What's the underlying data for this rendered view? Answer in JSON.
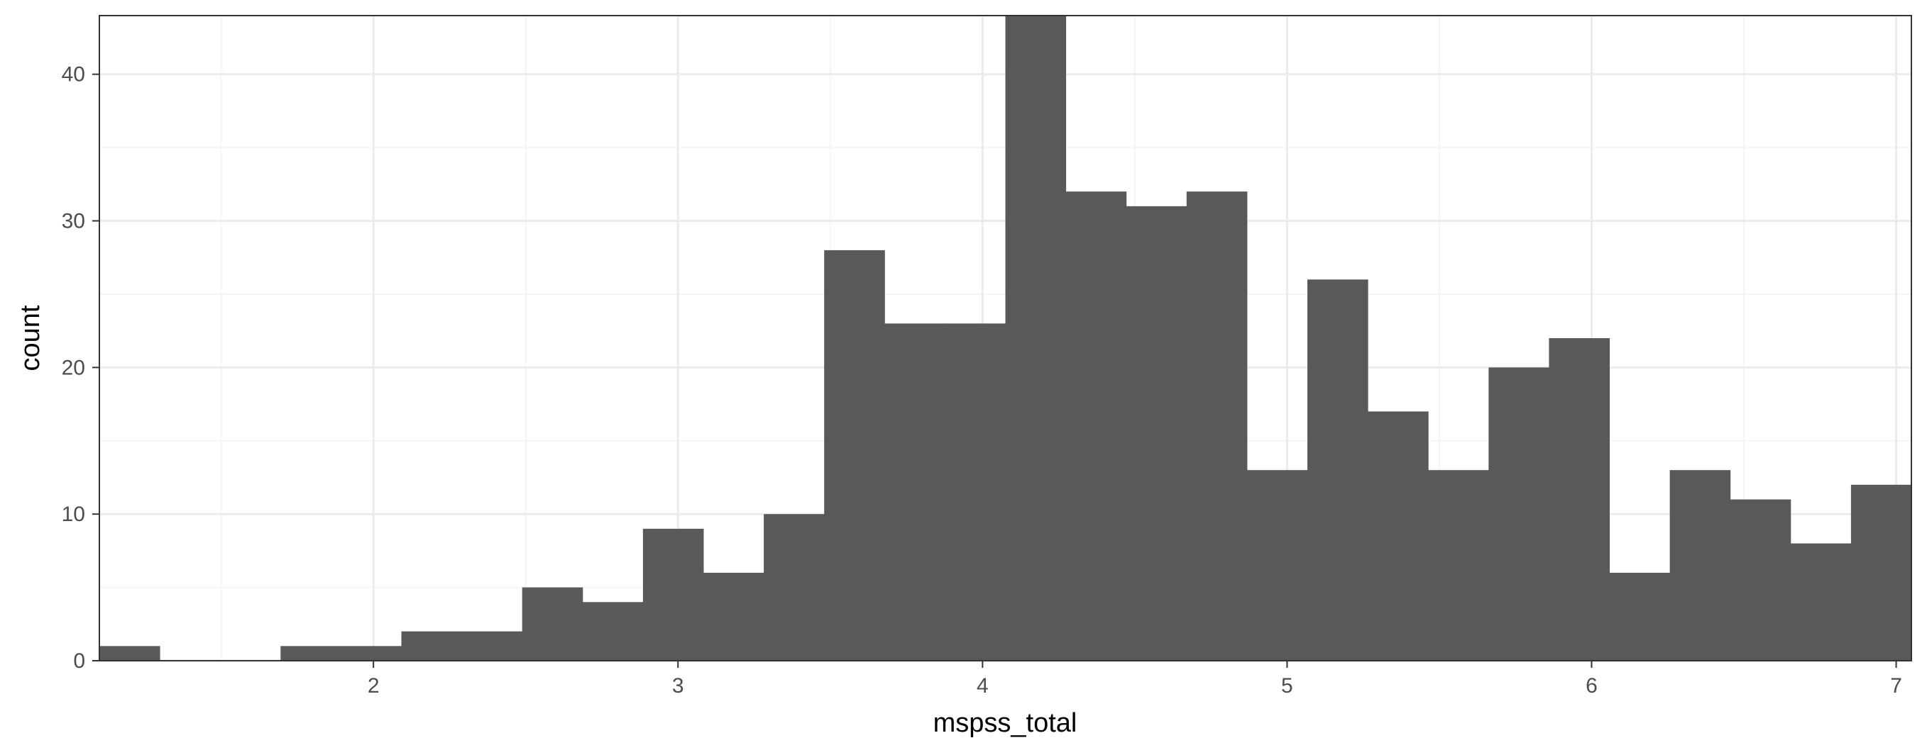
{
  "chart_data": {
    "type": "bar",
    "subtype": "histogram",
    "title": "",
    "xlabel": "mspss_total",
    "ylabel": "count",
    "xlim": [
      1.1,
      7.05
    ],
    "ylim": [
      0,
      44
    ],
    "x_ticks": [
      2,
      3,
      4,
      5,
      6,
      7
    ],
    "y_ticks": [
      0,
      10,
      20,
      30,
      40
    ],
    "bin_width": 0.1983,
    "grid": true,
    "bins": [
      {
        "x": 1.1,
        "count": 1
      },
      {
        "x": 1.2983,
        "count": 0
      },
      {
        "x": 1.4967,
        "count": 0
      },
      {
        "x": 1.695,
        "count": 1
      },
      {
        "x": 1.8933,
        "count": 1
      },
      {
        "x": 2.0917,
        "count": 2
      },
      {
        "x": 2.29,
        "count": 2
      },
      {
        "x": 2.4883,
        "count": 5
      },
      {
        "x": 2.6867,
        "count": 4
      },
      {
        "x": 2.885,
        "count": 9
      },
      {
        "x": 3.0833,
        "count": 6
      },
      {
        "x": 3.2817,
        "count": 10
      },
      {
        "x": 3.48,
        "count": 28
      },
      {
        "x": 3.6783,
        "count": 23
      },
      {
        "x": 3.8767,
        "count": 23
      },
      {
        "x": 4.075,
        "count": 44
      },
      {
        "x": 4.2733,
        "count": 32
      },
      {
        "x": 4.4717,
        "count": 31
      },
      {
        "x": 4.67,
        "count": 32
      },
      {
        "x": 4.8683,
        "count": 13
      },
      {
        "x": 5.0667,
        "count": 26
      },
      {
        "x": 5.265,
        "count": 17
      },
      {
        "x": 5.4633,
        "count": 13
      },
      {
        "x": 5.6617,
        "count": 20
      },
      {
        "x": 5.86,
        "count": 22
      },
      {
        "x": 6.0583,
        "count": 6
      },
      {
        "x": 6.2567,
        "count": 13
      },
      {
        "x": 6.455,
        "count": 11
      },
      {
        "x": 6.6533,
        "count": 8
      },
      {
        "x": 6.8517,
        "count": 12
      }
    ],
    "colors": {
      "bar": "#595959",
      "grid_major": "#ebebeb",
      "grid_minor": "#f5f5f5",
      "panel_border": "#333333",
      "tick_text": "#4d4d4d"
    }
  }
}
